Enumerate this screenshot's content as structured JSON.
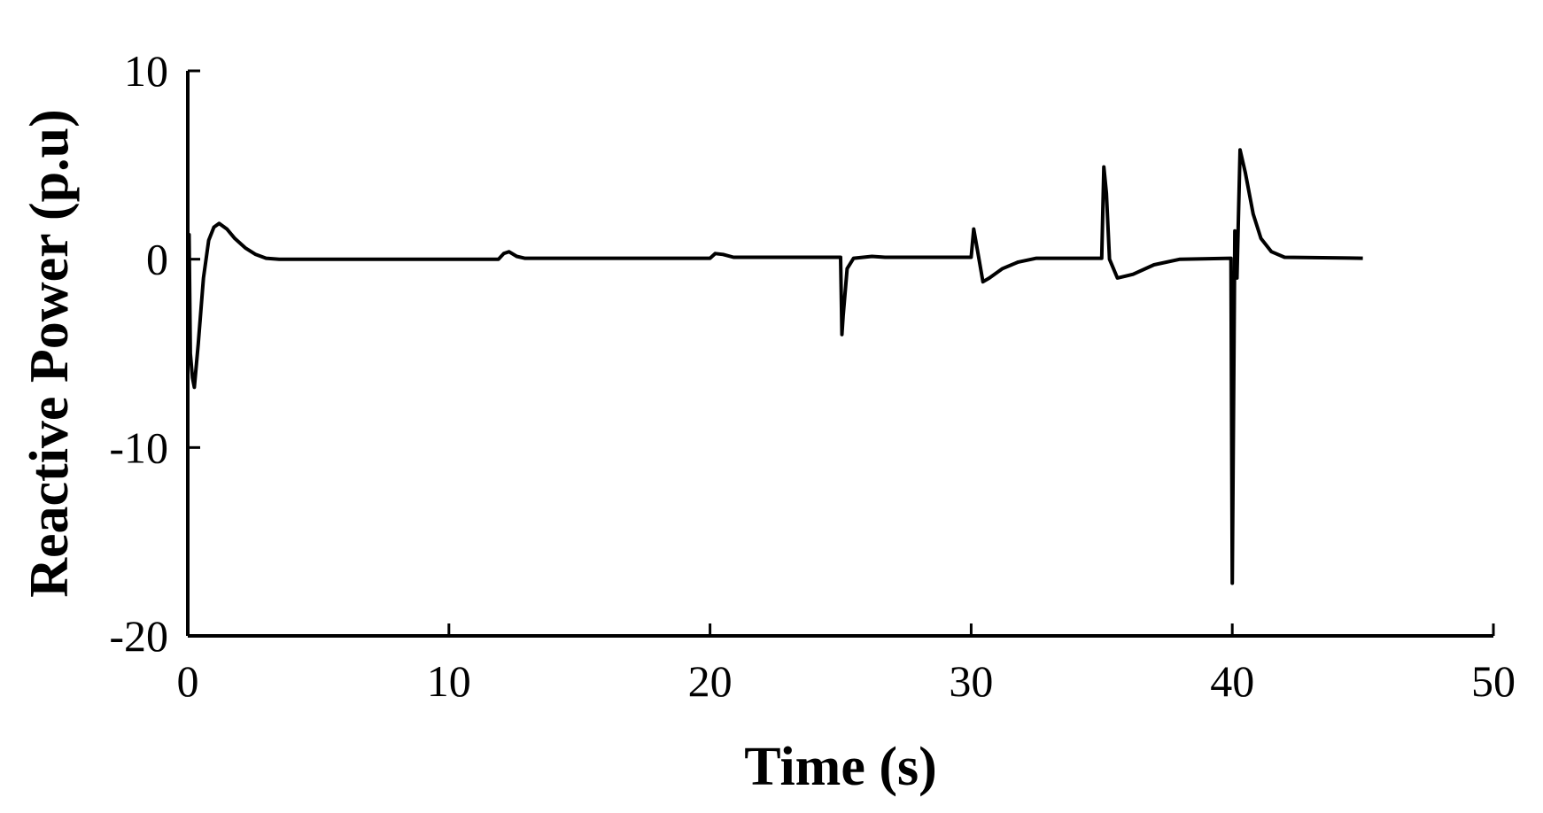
{
  "chart_data": {
    "type": "line",
    "title": "",
    "xlabel": "Time (s)",
    "ylabel": "Reactive Power (p.u)",
    "xlim": [
      0,
      50
    ],
    "ylim": [
      -20,
      10
    ],
    "x_ticks": [
      0,
      10,
      20,
      30,
      40,
      50
    ],
    "y_ticks": [
      10,
      0,
      -10,
      -20
    ],
    "grid": false,
    "legend": "none",
    "series": [
      {
        "color": "#000000",
        "points": [
          [
            0.0,
            0.0
          ],
          [
            0.05,
            1.3
          ],
          [
            0.1,
            -5.0
          ],
          [
            0.18,
            -6.3
          ],
          [
            0.25,
            -6.8
          ],
          [
            0.4,
            -4.5
          ],
          [
            0.6,
            -1.0
          ],
          [
            0.8,
            1.0
          ],
          [
            1.0,
            1.7
          ],
          [
            1.2,
            1.9
          ],
          [
            1.5,
            1.6
          ],
          [
            1.8,
            1.1
          ],
          [
            2.2,
            0.6
          ],
          [
            2.6,
            0.25
          ],
          [
            3.0,
            0.05
          ],
          [
            3.5,
            0.0
          ],
          [
            11.9,
            0.0
          ],
          [
            12.1,
            0.3
          ],
          [
            12.3,
            0.4
          ],
          [
            12.6,
            0.15
          ],
          [
            12.9,
            0.05
          ],
          [
            20.0,
            0.05
          ],
          [
            20.2,
            0.3
          ],
          [
            20.5,
            0.25
          ],
          [
            20.9,
            0.1
          ],
          [
            25.0,
            0.1
          ],
          [
            25.05,
            -4.0
          ],
          [
            25.1,
            -3.0
          ],
          [
            25.25,
            -0.5
          ],
          [
            25.5,
            0.05
          ],
          [
            26.2,
            0.15
          ],
          [
            26.7,
            0.1
          ],
          [
            30.0,
            0.1
          ],
          [
            30.1,
            1.6
          ],
          [
            30.25,
            0.4
          ],
          [
            30.45,
            -1.2
          ],
          [
            30.7,
            -1.0
          ],
          [
            31.2,
            -0.5
          ],
          [
            31.8,
            -0.15
          ],
          [
            32.5,
            0.05
          ],
          [
            35.0,
            0.05
          ],
          [
            35.08,
            4.9
          ],
          [
            35.18,
            3.5
          ],
          [
            35.3,
            0.0
          ],
          [
            35.6,
            -1.0
          ],
          [
            36.2,
            -0.8
          ],
          [
            37.0,
            -0.3
          ],
          [
            38.0,
            0.0
          ],
          [
            39.95,
            0.05
          ],
          [
            40.0,
            -17.2
          ],
          [
            40.1,
            1.5
          ],
          [
            40.18,
            -1.0
          ],
          [
            40.3,
            5.8
          ],
          [
            40.5,
            4.6
          ],
          [
            40.8,
            2.4
          ],
          [
            41.1,
            1.1
          ],
          [
            41.5,
            0.4
          ],
          [
            42.0,
            0.1
          ],
          [
            45.0,
            0.05
          ]
        ]
      }
    ]
  }
}
